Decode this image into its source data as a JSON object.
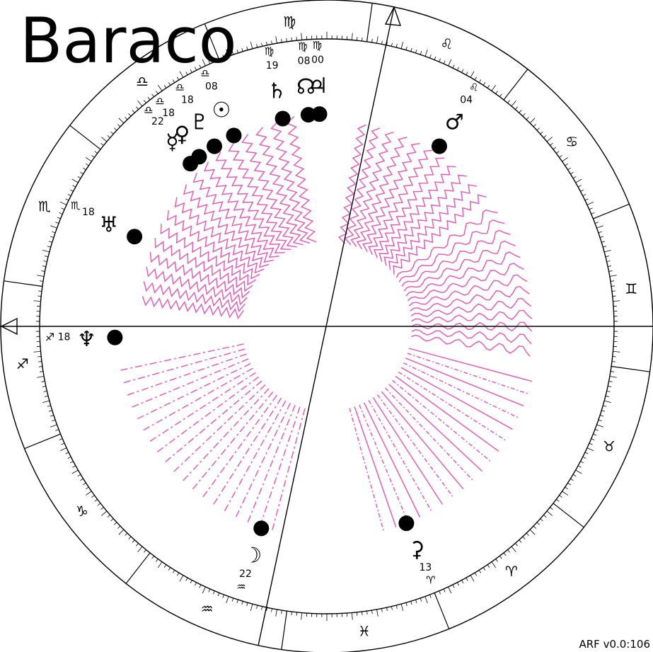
{
  "title": "Baraco",
  "version": "ARF v0.0:106",
  "colors": {
    "ink": "#000000",
    "accent": "#e060b8",
    "background": "#ffffff"
  },
  "zodiac_ring": [
    {
      "name": "virgo",
      "glyph": "♍"
    },
    {
      "name": "leo",
      "glyph": "♌"
    },
    {
      "name": "cancer",
      "glyph": "♋"
    },
    {
      "name": "gemini",
      "glyph": "♊"
    },
    {
      "name": "taurus",
      "glyph": "♉"
    },
    {
      "name": "aries",
      "glyph": "♈"
    },
    {
      "name": "pisces",
      "glyph": "♓"
    },
    {
      "name": "aquarius",
      "glyph": "♒"
    },
    {
      "name": "capricorn",
      "glyph": "♑"
    },
    {
      "name": "sagittarius",
      "glyph": "♐"
    },
    {
      "name": "scorpio",
      "glyph": "♏"
    },
    {
      "name": "libra",
      "glyph": "♎"
    }
  ],
  "planets": [
    {
      "name": "saturn",
      "glyph": "♄",
      "sign": "♍",
      "degree": "19"
    },
    {
      "name": "north-node",
      "glyph": "☊",
      "sign": "♍",
      "degree": "08"
    },
    {
      "name": "jupiter",
      "glyph": "♃",
      "sign": "♍",
      "degree": "00"
    },
    {
      "name": "mars",
      "glyph": "♂",
      "sign": "♌",
      "degree": "04"
    },
    {
      "name": "chiron",
      "glyph": "⚳",
      "sign": "♈",
      "degree": "13"
    },
    {
      "name": "moon",
      "glyph": "☽",
      "sign": "♒",
      "degree": "22"
    },
    {
      "name": "neptune",
      "glyph": "♆",
      "sign": "♐",
      "degree": "18"
    },
    {
      "name": "uranus",
      "glyph": "♅",
      "sign": "♏",
      "degree": "18"
    },
    {
      "name": "mercury",
      "glyph": "☿",
      "sign": "♎",
      "degree": "22"
    },
    {
      "name": "venus",
      "glyph": "♀",
      "sign": "♎",
      "degree": "18"
    },
    {
      "name": "pluto",
      "glyph": "♇",
      "sign": "♎",
      "degree": "18"
    },
    {
      "name": "sun",
      "glyph": "☉",
      "sign": "♎",
      "degree": "08"
    }
  ]
}
